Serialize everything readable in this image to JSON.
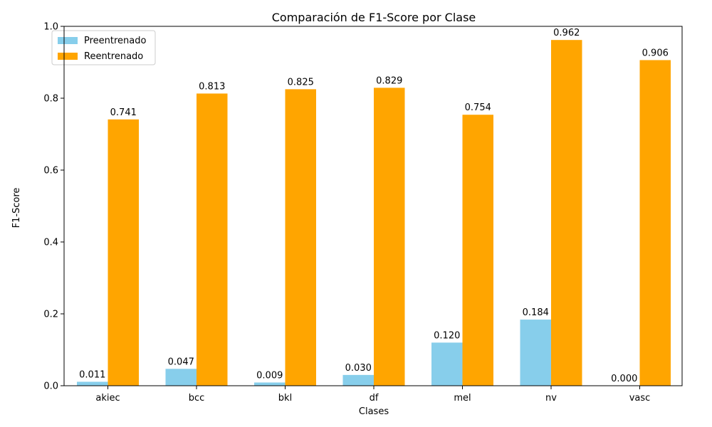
{
  "chart_data": {
    "type": "bar",
    "title": "Comparación de F1-Score por Clase",
    "xlabel": "Clases",
    "ylabel": "F1-Score",
    "categories": [
      "akiec",
      "bcc",
      "bkl",
      "df",
      "mel",
      "nv",
      "vasc"
    ],
    "series": [
      {
        "name": "Preentrenado",
        "color": "#87CEEB",
        "values": [
          0.011,
          0.047,
          0.009,
          0.03,
          0.12,
          0.184,
          0.0
        ],
        "labels": [
          "0.011",
          "0.047",
          "0.009",
          "0.030",
          "0.120",
          "0.184",
          "0.000"
        ]
      },
      {
        "name": "Reentrenado",
        "color": "#FFA500",
        "values": [
          0.741,
          0.813,
          0.825,
          0.829,
          0.754,
          0.962,
          0.906
        ],
        "labels": [
          "0.741",
          "0.813",
          "0.825",
          "0.829",
          "0.754",
          "0.962",
          "0.906"
        ]
      }
    ],
    "ylim": [
      0,
      1.0
    ],
    "yticks": [
      "0.0",
      "0.2",
      "0.4",
      "0.6",
      "0.8",
      "1.0"
    ],
    "legend_position": "top-left",
    "grid": false
  }
}
